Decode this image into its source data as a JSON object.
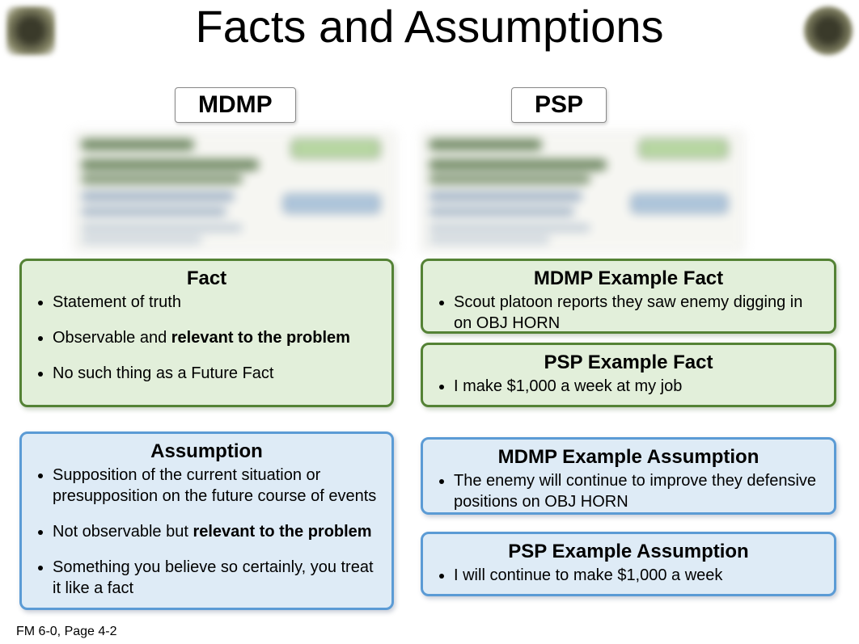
{
  "title": "Facts and Assumptions",
  "columns": {
    "left_label": "MDMP",
    "right_label": "PSP"
  },
  "fact": {
    "heading": "Fact",
    "bullets": [
      {
        "pre": "Statement of truth",
        "bold": "",
        "post": ""
      },
      {
        "pre": "Observable and ",
        "bold": "relevant to the problem",
        "post": ""
      },
      {
        "pre": "No such thing as a Future Fact",
        "bold": "",
        "post": ""
      }
    ]
  },
  "assumption": {
    "heading": "Assumption",
    "bullets": [
      {
        "pre": "Supposition of the current situation or presupposition on the future course of events",
        "bold": "",
        "post": ""
      },
      {
        "pre": "Not observable but ",
        "bold": "relevant to the problem",
        "post": ""
      },
      {
        "pre": "Something you believe so certainly, you treat it like a fact",
        "bold": "",
        "post": ""
      }
    ]
  },
  "examples": {
    "mdmp_fact": {
      "heading": "MDMP Example Fact",
      "text": "Scout platoon reports they saw enemy digging in on OBJ HORN"
    },
    "psp_fact": {
      "heading": "PSP Example Fact",
      "text": "I make $1,000 a week at my job"
    },
    "mdmp_assumption": {
      "heading": "MDMP Example Assumption",
      "text": "The enemy will continue to improve they defensive positions on OBJ HORN"
    },
    "psp_assumption": {
      "heading": "PSP Example Assumption",
      "text": "I will continue to make $1,000 a week"
    }
  },
  "footer": "FM 6-0, Page 4-2",
  "colors": {
    "green_fill": "#e2efda",
    "green_border": "#548235",
    "blue_fill": "#deebf6",
    "blue_border": "#5b9bd5",
    "background": "#ffffff"
  }
}
